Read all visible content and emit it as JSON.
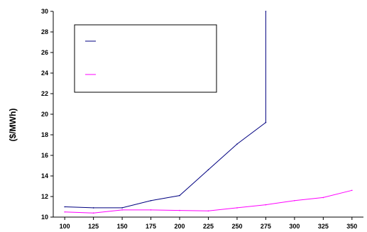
{
  "chart_data": {
    "type": "line",
    "title": "",
    "xlabel": "",
    "ylabel": "($/MWh)",
    "x": [
      100,
      125,
      150,
      175,
      200,
      225,
      250,
      275,
      300,
      325,
      350
    ],
    "xlim": [
      90,
      360
    ],
    "ylim": [
      10,
      30
    ],
    "yticks": [
      10,
      12,
      14,
      16,
      18,
      20,
      22,
      24,
      26,
      28,
      30
    ],
    "grid": false,
    "legend": "top-left, boxed, entries without text",
    "series": [
      {
        "color": "#000080",
        "points": [
          [
            100,
            11.0
          ],
          [
            125,
            10.9
          ],
          [
            150,
            10.9
          ],
          [
            175,
            11.6
          ],
          [
            200,
            12.1
          ],
          [
            225,
            14.6
          ],
          [
            250,
            17.1
          ],
          [
            275,
            19.2
          ],
          [
            275,
            30.0
          ]
        ]
      },
      {
        "color": "#ff00ff",
        "points": [
          [
            100,
            10.5
          ],
          [
            125,
            10.4
          ],
          [
            150,
            10.7
          ],
          [
            175,
            10.7
          ],
          [
            200,
            10.65
          ],
          [
            225,
            10.6
          ],
          [
            250,
            10.9
          ],
          [
            275,
            11.2
          ],
          [
            300,
            11.6
          ],
          [
            325,
            11.9
          ],
          [
            350,
            12.6
          ]
        ]
      }
    ]
  }
}
